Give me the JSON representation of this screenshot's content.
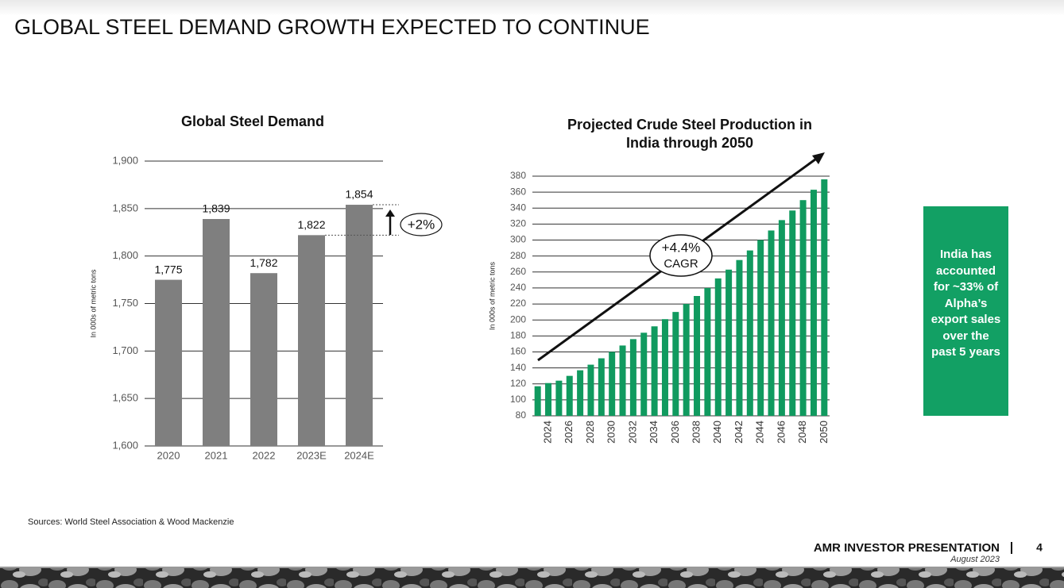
{
  "title": "GLOBAL STEEL DEMAND GROWTH EXPECTED TO CONTINUE",
  "chart_data": [
    {
      "type": "bar",
      "title": [
        "Global Steel Demand"
      ],
      "y_label": "In 000s of metric tons",
      "categories": [
        "2020",
        "2021",
        "2022",
        "2023E",
        "2024E"
      ],
      "values": [
        1775,
        1839,
        1782,
        1822,
        1854
      ],
      "value_labels": [
        "1,775",
        "1,839",
        "1,782",
        "1,822",
        "1,854"
      ],
      "color": "#7f7f7f",
      "ylim": [
        1600,
        1900
      ],
      "yticks": [
        {
          "value": 1600,
          "label": "1,600"
        },
        {
          "value": 1650,
          "label": "1,650"
        },
        {
          "value": 1700,
          "label": "1,700"
        },
        {
          "value": 1750,
          "label": "1,750"
        },
        {
          "value": 1800,
          "label": "1,800"
        },
        {
          "value": 1850,
          "label": "1,850"
        },
        {
          "value": 1900,
          "label": "1,900"
        }
      ],
      "grid": true,
      "annotation": [
        "+2%"
      ]
    },
    {
      "type": "bar",
      "title": [
        "Projected Crude Steel Production in",
        "India through 2050"
      ],
      "y_label": "In 000s of metric tons",
      "categories": [
        null,
        "2024",
        null,
        "2026",
        null,
        "2028",
        null,
        "2030",
        null,
        "2032",
        null,
        "2034",
        null,
        "2036",
        null,
        "2038",
        null,
        "2040",
        null,
        "2042",
        null,
        "2044",
        null,
        "2046",
        null,
        "2048",
        null,
        "2050"
      ],
      "values": [
        117,
        121,
        124,
        130,
        137,
        144,
        152,
        160,
        168,
        176,
        184,
        192,
        201,
        210,
        220,
        230,
        240,
        252,
        263,
        275,
        287,
        300,
        312,
        325,
        337,
        350,
        363,
        376
      ],
      "color": "#109a5f",
      "ylim": [
        80,
        380
      ],
      "yticks": [
        80,
        100,
        120,
        140,
        160,
        180,
        200,
        220,
        240,
        260,
        280,
        300,
        320,
        340,
        360,
        380
      ],
      "grid": true,
      "annotation": [
        "+4.4%",
        "CAGR"
      ]
    }
  ],
  "callout": "India has accounted for ~33% of Alpha’s export sales over the past 5 years",
  "sources": "Sources: World Steel Association & Wood Mackenzie",
  "footer": {
    "presentation": "AMR INVESTOR PRESENTATION",
    "date": "August 2023",
    "page": 4
  }
}
